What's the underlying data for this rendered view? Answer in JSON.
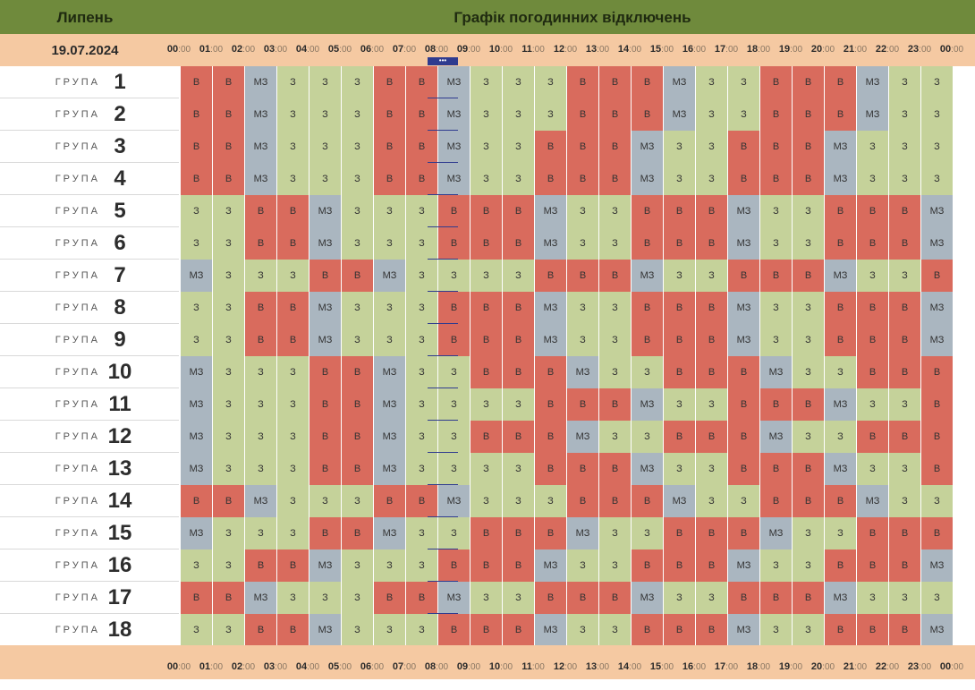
{
  "header": {
    "month": "Липень",
    "title": "Графік погодинних відключень"
  },
  "date": "19.07.2024",
  "current_hour_index": 8,
  "current_marker_label": "•••",
  "hours": [
    "00",
    "01",
    "02",
    "03",
    "04",
    "05",
    "06",
    "07",
    "08",
    "09",
    "10",
    "11",
    "12",
    "13",
    "14",
    "15",
    "16",
    "17",
    "18",
    "19",
    "20",
    "21",
    "22",
    "23",
    "00"
  ],
  "minutes": "00",
  "group_word": "ГРУПА",
  "legend": {
    "B": "В",
    "Z": "З",
    "M": "МЗ"
  },
  "colors": {
    "B": "#d96b5d",
    "Z": "#c5d29a",
    "M": "#aab6c0",
    "header": "#6f8a3c",
    "band": "#f5c9a2",
    "marker": "#2f3b8f"
  },
  "groups": [
    {
      "number": "1",
      "states": [
        "B",
        "B",
        "M",
        "Z",
        "Z",
        "Z",
        "B",
        "B",
        "M",
        "Z",
        "Z",
        "Z",
        "B",
        "B",
        "B",
        "M",
        "Z",
        "Z",
        "B",
        "B",
        "B",
        "M",
        "Z",
        "Z"
      ]
    },
    {
      "number": "2",
      "states": [
        "B",
        "B",
        "M",
        "Z",
        "Z",
        "Z",
        "B",
        "B",
        "M",
        "Z",
        "Z",
        "Z",
        "B",
        "B",
        "B",
        "M",
        "Z",
        "Z",
        "B",
        "B",
        "B",
        "M",
        "Z",
        "Z"
      ]
    },
    {
      "number": "3",
      "states": [
        "B",
        "B",
        "M",
        "Z",
        "Z",
        "Z",
        "B",
        "B",
        "M",
        "Z",
        "Z",
        "B",
        "B",
        "B",
        "M",
        "Z",
        "Z",
        "B",
        "B",
        "B",
        "M",
        "Z",
        "Z",
        "Z"
      ]
    },
    {
      "number": "4",
      "states": [
        "B",
        "B",
        "M",
        "Z",
        "Z",
        "Z",
        "B",
        "B",
        "M",
        "Z",
        "Z",
        "B",
        "B",
        "B",
        "M",
        "Z",
        "Z",
        "B",
        "B",
        "B",
        "M",
        "Z",
        "Z",
        "Z"
      ]
    },
    {
      "number": "5",
      "states": [
        "Z",
        "Z",
        "B",
        "B",
        "M",
        "Z",
        "Z",
        "Z",
        "B",
        "B",
        "B",
        "M",
        "Z",
        "Z",
        "B",
        "B",
        "B",
        "M",
        "Z",
        "Z",
        "B",
        "B",
        "B",
        "M"
      ]
    },
    {
      "number": "6",
      "states": [
        "Z",
        "Z",
        "B",
        "B",
        "M",
        "Z",
        "Z",
        "Z",
        "B",
        "B",
        "B",
        "M",
        "Z",
        "Z",
        "B",
        "B",
        "B",
        "M",
        "Z",
        "Z",
        "B",
        "B",
        "B",
        "M"
      ]
    },
    {
      "number": "7",
      "states": [
        "M",
        "Z",
        "Z",
        "Z",
        "B",
        "B",
        "M",
        "Z",
        "Z",
        "Z",
        "Z",
        "B",
        "B",
        "B",
        "M",
        "Z",
        "Z",
        "B",
        "B",
        "B",
        "M",
        "Z",
        "Z",
        "B"
      ]
    },
    {
      "number": "8",
      "states": [
        "Z",
        "Z",
        "B",
        "B",
        "M",
        "Z",
        "Z",
        "Z",
        "B",
        "B",
        "B",
        "M",
        "Z",
        "Z",
        "B",
        "B",
        "B",
        "M",
        "Z",
        "Z",
        "B",
        "B",
        "B",
        "M"
      ]
    },
    {
      "number": "9",
      "states": [
        "Z",
        "Z",
        "B",
        "B",
        "M",
        "Z",
        "Z",
        "Z",
        "B",
        "B",
        "B",
        "M",
        "Z",
        "Z",
        "B",
        "B",
        "B",
        "M",
        "Z",
        "Z",
        "B",
        "B",
        "B",
        "M"
      ]
    },
    {
      "number": "10",
      "states": [
        "M",
        "Z",
        "Z",
        "Z",
        "B",
        "B",
        "M",
        "Z",
        "Z",
        "B",
        "B",
        "B",
        "M",
        "Z",
        "Z",
        "B",
        "B",
        "B",
        "M",
        "Z",
        "Z",
        "B",
        "B",
        "B"
      ]
    },
    {
      "number": "11",
      "states": [
        "M",
        "Z",
        "Z",
        "Z",
        "B",
        "B",
        "M",
        "Z",
        "Z",
        "Z",
        "Z",
        "B",
        "B",
        "B",
        "M",
        "Z",
        "Z",
        "B",
        "B",
        "B",
        "M",
        "Z",
        "Z",
        "B"
      ]
    },
    {
      "number": "12",
      "states": [
        "M",
        "Z",
        "Z",
        "Z",
        "B",
        "B",
        "M",
        "Z",
        "Z",
        "B",
        "B",
        "B",
        "M",
        "Z",
        "Z",
        "B",
        "B",
        "B",
        "M",
        "Z",
        "Z",
        "B",
        "B",
        "B"
      ]
    },
    {
      "number": "13",
      "states": [
        "M",
        "Z",
        "Z",
        "Z",
        "B",
        "B",
        "M",
        "Z",
        "Z",
        "Z",
        "Z",
        "B",
        "B",
        "B",
        "M",
        "Z",
        "Z",
        "B",
        "B",
        "B",
        "M",
        "Z",
        "Z",
        "B"
      ]
    },
    {
      "number": "14",
      "states": [
        "B",
        "B",
        "M",
        "Z",
        "Z",
        "Z",
        "B",
        "B",
        "M",
        "Z",
        "Z",
        "Z",
        "B",
        "B",
        "B",
        "M",
        "Z",
        "Z",
        "B",
        "B",
        "B",
        "M",
        "Z",
        "Z"
      ]
    },
    {
      "number": "15",
      "states": [
        "M",
        "Z",
        "Z",
        "Z",
        "B",
        "B",
        "M",
        "Z",
        "Z",
        "B",
        "B",
        "B",
        "M",
        "Z",
        "Z",
        "B",
        "B",
        "B",
        "M",
        "Z",
        "Z",
        "B",
        "B",
        "B"
      ]
    },
    {
      "number": "16",
      "states": [
        "Z",
        "Z",
        "B",
        "B",
        "M",
        "Z",
        "Z",
        "Z",
        "B",
        "B",
        "B",
        "M",
        "Z",
        "Z",
        "B",
        "B",
        "B",
        "M",
        "Z",
        "Z",
        "B",
        "B",
        "B",
        "M"
      ]
    },
    {
      "number": "17",
      "states": [
        "B",
        "B",
        "M",
        "Z",
        "Z",
        "Z",
        "B",
        "B",
        "M",
        "Z",
        "Z",
        "B",
        "B",
        "B",
        "M",
        "Z",
        "Z",
        "B",
        "B",
        "B",
        "M",
        "Z",
        "Z",
        "Z"
      ]
    },
    {
      "number": "18",
      "states": [
        "Z",
        "Z",
        "B",
        "B",
        "M",
        "Z",
        "Z",
        "Z",
        "B",
        "B",
        "B",
        "M",
        "Z",
        "Z",
        "B",
        "B",
        "B",
        "M",
        "Z",
        "Z",
        "B",
        "B",
        "B",
        "M"
      ]
    }
  ]
}
